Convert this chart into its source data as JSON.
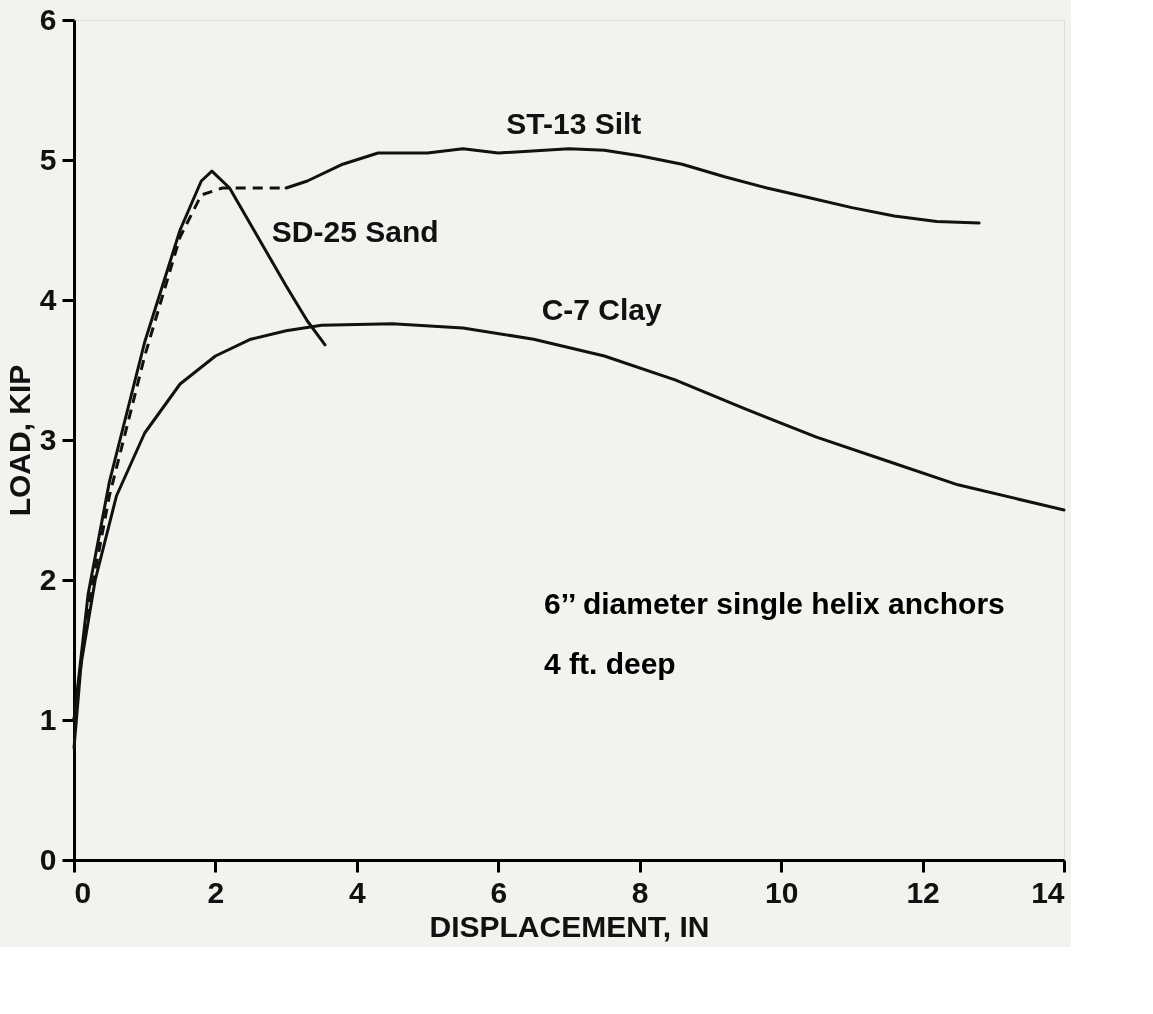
{
  "chart_data": {
    "type": "line",
    "xlabel": "DISPLACEMENT, IN",
    "ylabel": "LOAD, KIP",
    "xlim": [
      0,
      14
    ],
    "ylim": [
      0,
      6
    ],
    "xticks": [
      0,
      2,
      4,
      6,
      8,
      10,
      12,
      14
    ],
    "yticks": [
      0,
      1,
      2,
      3,
      4,
      5,
      6
    ],
    "grid": false,
    "legend": false,
    "marker": "none",
    "series": [
      {
        "name": "ST-13 Silt",
        "color": "#111111",
        "line_style": "solid",
        "x": [
          3.0,
          3.3,
          3.8,
          4.3,
          5.0,
          5.5,
          6.0,
          7.0,
          7.5,
          8.0,
          8.6,
          9.2,
          9.8,
          10.4,
          11.0,
          11.6,
          12.2,
          12.8
        ],
        "values": [
          4.8,
          4.85,
          4.97,
          5.05,
          5.05,
          5.08,
          5.05,
          5.08,
          5.07,
          5.03,
          4.97,
          4.88,
          4.8,
          4.73,
          4.66,
          4.6,
          4.56,
          4.55
        ]
      },
      {
        "color": "#111111",
        "line_style": "dashed",
        "x": [
          0,
          0.2,
          0.5,
          1.0,
          1.5,
          1.8,
          2.1,
          3.0
        ],
        "values": [
          1.0,
          1.8,
          2.6,
          3.6,
          4.45,
          4.75,
          4.8,
          4.8
        ]
      },
      {
        "name": "SD-25 Sand",
        "color": "#111111",
        "line_style": "solid",
        "x": [
          0,
          0.2,
          0.5,
          1.0,
          1.5,
          1.8,
          1.95,
          2.2,
          2.6,
          3.0,
          3.3,
          3.55
        ],
        "values": [
          1.0,
          1.9,
          2.7,
          3.7,
          4.5,
          4.85,
          4.92,
          4.8,
          4.45,
          4.1,
          3.85,
          3.68
        ]
      },
      {
        "name": "C-7 Clay",
        "color": "#111111",
        "line_style": "solid",
        "x": [
          0,
          0.1,
          0.3,
          0.6,
          1.0,
          1.5,
          2.0,
          2.5,
          3.0,
          3.5,
          4.5,
          5.5,
          6.5,
          7.5,
          8.5,
          9.5,
          10.5,
          11.5,
          12.5,
          14.0
        ],
        "values": [
          0.8,
          1.4,
          2.0,
          2.6,
          3.05,
          3.4,
          3.6,
          3.72,
          3.78,
          3.82,
          3.83,
          3.8,
          3.72,
          3.6,
          3.43,
          3.22,
          3.02,
          2.85,
          2.68,
          2.5
        ]
      }
    ],
    "annotations": [
      "6’’ diameter single helix anchors",
      "4 ft. deep"
    ]
  }
}
